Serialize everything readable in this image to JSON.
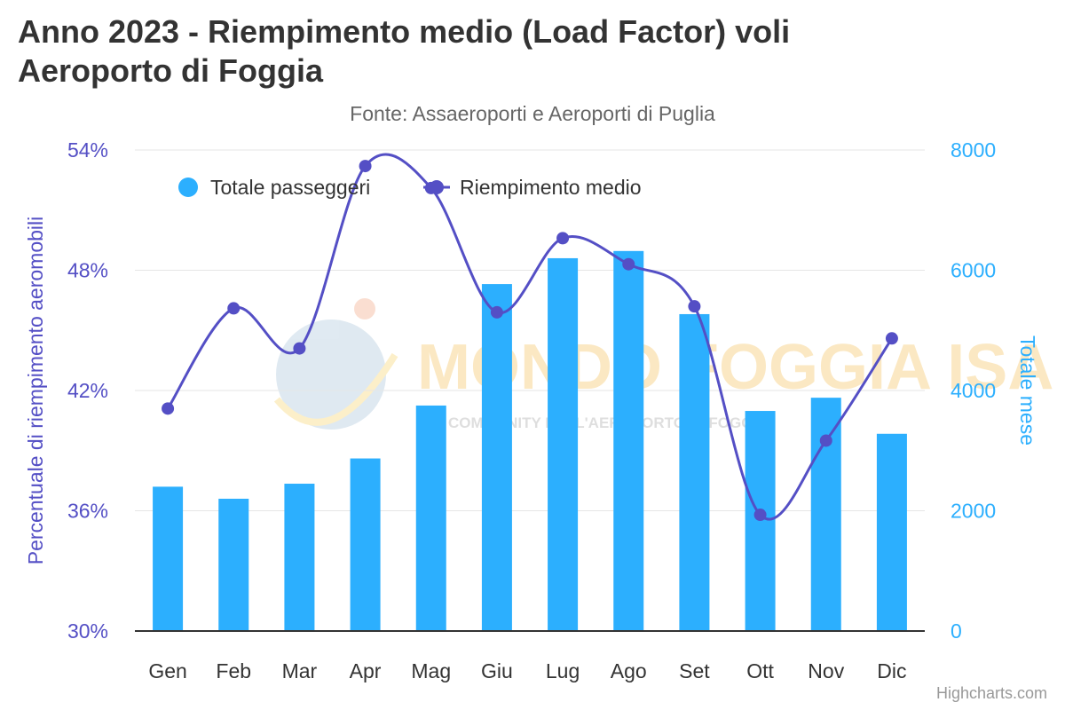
{
  "title": "Anno 2023 - Riempimento medio (Load Factor) voli Aeroporto di Foggia",
  "subtitle": "Fonte: Assaeroporti e Aeroporti di Puglia",
  "credits": "Highcharts.com",
  "watermark": {
    "text": "MONDO FOGGIA ISA",
    "subtext": "COMMUNITY DELL'AEROPORTO DI FOGGIA"
  },
  "colors": {
    "bars": "#2caffe",
    "line": "#544fc5",
    "left_axis": "#544fc5",
    "right_axis": "#2caffe"
  },
  "chart_data": {
    "type": "bar",
    "categories": [
      "Gen",
      "Feb",
      "Mar",
      "Apr",
      "Mag",
      "Giu",
      "Lug",
      "Ago",
      "Set",
      "Ott",
      "Nov",
      "Dic"
    ],
    "series": [
      {
        "name": "Totale passeggeri",
        "type": "bar",
        "axis": "right",
        "values": [
          2400,
          2200,
          2450,
          2870,
          3750,
          5770,
          6200,
          6320,
          5270,
          3660,
          3880,
          3280
        ]
      },
      {
        "name": "Riempimento medio",
        "type": "line",
        "axis": "left",
        "values": [
          41.1,
          46.1,
          44.1,
          53.2,
          52.1,
          45.9,
          49.6,
          48.3,
          46.2,
          35.8,
          39.5,
          44.6
        ]
      }
    ],
    "y_left": {
      "label": "Percentuale di riempimento aeromobili",
      "ylim": [
        30,
        54
      ],
      "ticks": [
        "30%",
        "36%",
        "42%",
        "48%",
        "54%"
      ]
    },
    "y_right": {
      "label": "Totale mese",
      "ylim": [
        0,
        8000
      ],
      "ticks": [
        "0",
        "2000",
        "4000",
        "6000",
        "8000"
      ]
    },
    "legend": "top-left",
    "grid": true
  }
}
